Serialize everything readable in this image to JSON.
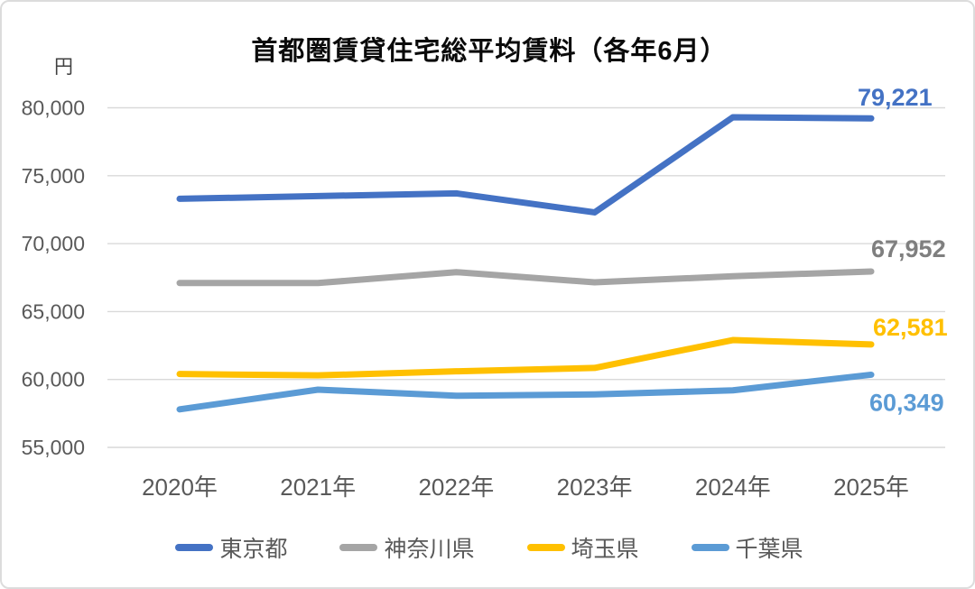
{
  "chart_data": {
    "type": "line",
    "title": "首都圏賃貸住宅総平均賃料（各年6月）",
    "unit_label": "円",
    "categories": [
      "2020年",
      "2021年",
      "2022年",
      "2023年",
      "2024年",
      "2025年"
    ],
    "series": [
      {
        "name": "東京都",
        "color": "#4472C4",
        "label_color": "#4472C4",
        "values": [
          73300,
          73500,
          73700,
          72300,
          79300,
          79221
        ],
        "end_label": "79,221",
        "label_offset": [
          -15,
          -14
        ]
      },
      {
        "name": "神奈川県",
        "color": "#A5A5A5",
        "label_color": "#7F7F7F",
        "values": [
          67100,
          67100,
          67900,
          67150,
          67600,
          67952
        ],
        "end_label": "67,952",
        "label_offset": [
          0,
          -16
        ]
      },
      {
        "name": "埼玉県",
        "color": "#FFC000",
        "label_color": "#FFC000",
        "values": [
          60400,
          60300,
          60600,
          60850,
          62900,
          62581
        ],
        "end_label": "62,581",
        "label_offset": [
          2,
          -10
        ]
      },
      {
        "name": "千葉県",
        "color": "#5B9BD5",
        "label_color": "#5B9BD5",
        "values": [
          57800,
          59250,
          58800,
          58900,
          59200,
          60349
        ],
        "end_label": "60,349",
        "label_offset": [
          -2,
          40
        ]
      }
    ],
    "ylim": [
      55000,
      80000
    ],
    "ytick_step": 5000,
    "yticks": [
      "80,000",
      "75,000",
      "70,000",
      "65,000",
      "60,000",
      "55,000"
    ],
    "grid": true,
    "gridline_color": "#D9D9D9",
    "axis_text_color": "#595959",
    "legend_position": "bottom"
  }
}
